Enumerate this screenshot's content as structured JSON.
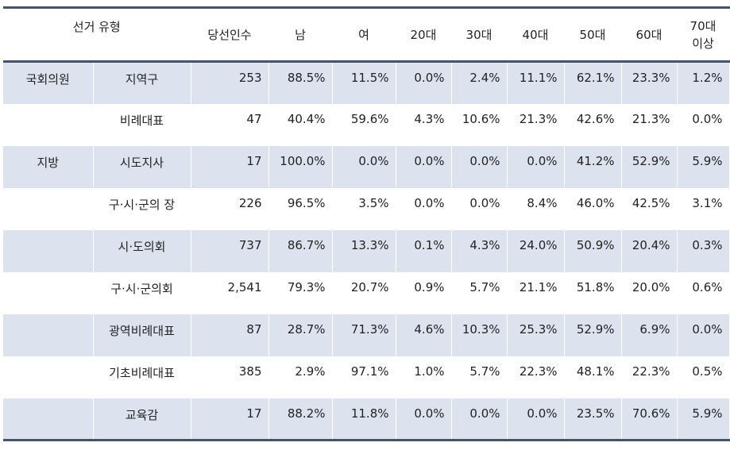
{
  "header": {
    "election_type": "선거 유형",
    "winners": "당선인수",
    "male": "남",
    "female": "여",
    "age20": "20대",
    "age30": "30대",
    "age40": "40대",
    "age50": "50대",
    "age60": "60대",
    "age70_line1": "70대",
    "age70_line2": "이상"
  },
  "rows": [
    {
      "category": "국회의원",
      "type": "지역구",
      "winners": "253",
      "male": "88.5%",
      "female": "11.5%",
      "a20": "0.0%",
      "a30": "2.4%",
      "a40": "11.1%",
      "a50": "62.1%",
      "a60": "23.3%",
      "a70": "1.2%"
    },
    {
      "category": "",
      "type": "비례대표",
      "winners": "47",
      "male": "40.4%",
      "female": "59.6%",
      "a20": "4.3%",
      "a30": "10.6%",
      "a40": "21.3%",
      "a50": "42.6%",
      "a60": "21.3%",
      "a70": "0.0%"
    },
    {
      "category": "지방",
      "type": "시도지사",
      "winners": "17",
      "male": "100.0%",
      "female": "0.0%",
      "a20": "0.0%",
      "a30": "0.0%",
      "a40": "0.0%",
      "a50": "41.2%",
      "a60": "52.9%",
      "a70": "5.9%"
    },
    {
      "category": "",
      "type": "구·시·군의 장",
      "winners": "226",
      "male": "96.5%",
      "female": "3.5%",
      "a20": "0.0%",
      "a30": "0.0%",
      "a40": "8.4%",
      "a50": "46.0%",
      "a60": "42.5%",
      "a70": "3.1%"
    },
    {
      "category": "",
      "type": "시·도의회",
      "winners": "737",
      "male": "86.7%",
      "female": "13.3%",
      "a20": "0.1%",
      "a30": "4.3%",
      "a40": "24.0%",
      "a50": "50.9%",
      "a60": "20.4%",
      "a70": "0.3%"
    },
    {
      "category": "",
      "type": "구·시·군의회",
      "winners": "2,541",
      "male": "79.3%",
      "female": "20.7%",
      "a20": "0.9%",
      "a30": "5.7%",
      "a40": "21.1%",
      "a50": "51.8%",
      "a60": "20.0%",
      "a70": "0.6%"
    },
    {
      "category": "",
      "type": "광역비례대표",
      "winners": "87",
      "male": "28.7%",
      "female": "71.3%",
      "a20": "4.6%",
      "a30": "10.3%",
      "a40": "25.3%",
      "a50": "52.9%",
      "a60": "6.9%",
      "a70": "0.0%"
    },
    {
      "category": "",
      "type": "기초비례대표",
      "winners": "385",
      "male": "2.9%",
      "female": "97.1%",
      "a20": "1.0%",
      "a30": "5.7%",
      "a40": "22.3%",
      "a50": "48.1%",
      "a60": "22.3%",
      "a70": "0.5%"
    },
    {
      "category": "",
      "type": "교육감",
      "winners": "17",
      "male": "88.2%",
      "female": "11.8%",
      "a20": "0.0%",
      "a30": "0.0%",
      "a40": "0.0%",
      "a50": "23.5%",
      "a60": "70.6%",
      "a70": "5.9%"
    }
  ],
  "colors": {
    "shaded_row": "#dce3ef",
    "rule": "#44546a"
  }
}
